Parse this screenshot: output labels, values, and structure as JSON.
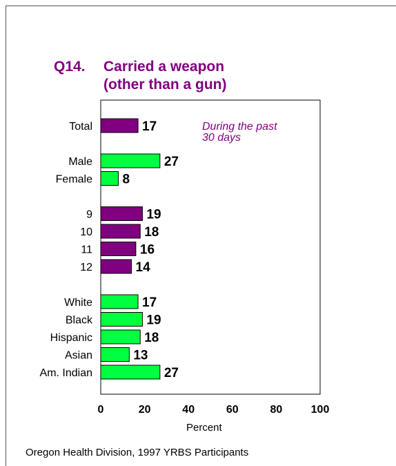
{
  "chart_data": {
    "type": "bar",
    "orientation": "horizontal",
    "title_number": "Q14.",
    "title_line1": "Carried a weapon",
    "title_line2": "(other than a gun)",
    "annotation": "During the past\n30 days",
    "xlabel": "Percent",
    "xlim": [
      0,
      100
    ],
    "xticks": [
      "0",
      "20",
      "40",
      "60",
      "80",
      "100"
    ],
    "grid": false,
    "colors": {
      "purple": "#800080",
      "green": "#00FF40"
    },
    "groups": [
      {
        "color": "purple",
        "bars": [
          {
            "label": "Total",
            "value": 17
          }
        ]
      },
      {
        "color": "green",
        "bars": [
          {
            "label": "Male",
            "value": 27
          },
          {
            "label": "Female",
            "value": 8
          }
        ]
      },
      {
        "color": "purple",
        "bars": [
          {
            "label": "9",
            "value": 19
          },
          {
            "label": "10",
            "value": 18
          },
          {
            "label": "11",
            "value": 16
          },
          {
            "label": "12",
            "value": 14
          }
        ]
      },
      {
        "color": "green",
        "bars": [
          {
            "label": "White",
            "value": 17
          },
          {
            "label": "Black",
            "value": 19
          },
          {
            "label": "Hispanic",
            "value": 18
          },
          {
            "label": "Asian",
            "value": 13
          },
          {
            "label": "Am. Indian",
            "value": 27
          }
        ]
      }
    ]
  },
  "footer": {
    "source": "Oregon Health Division, 1997 YRBS Participants"
  }
}
